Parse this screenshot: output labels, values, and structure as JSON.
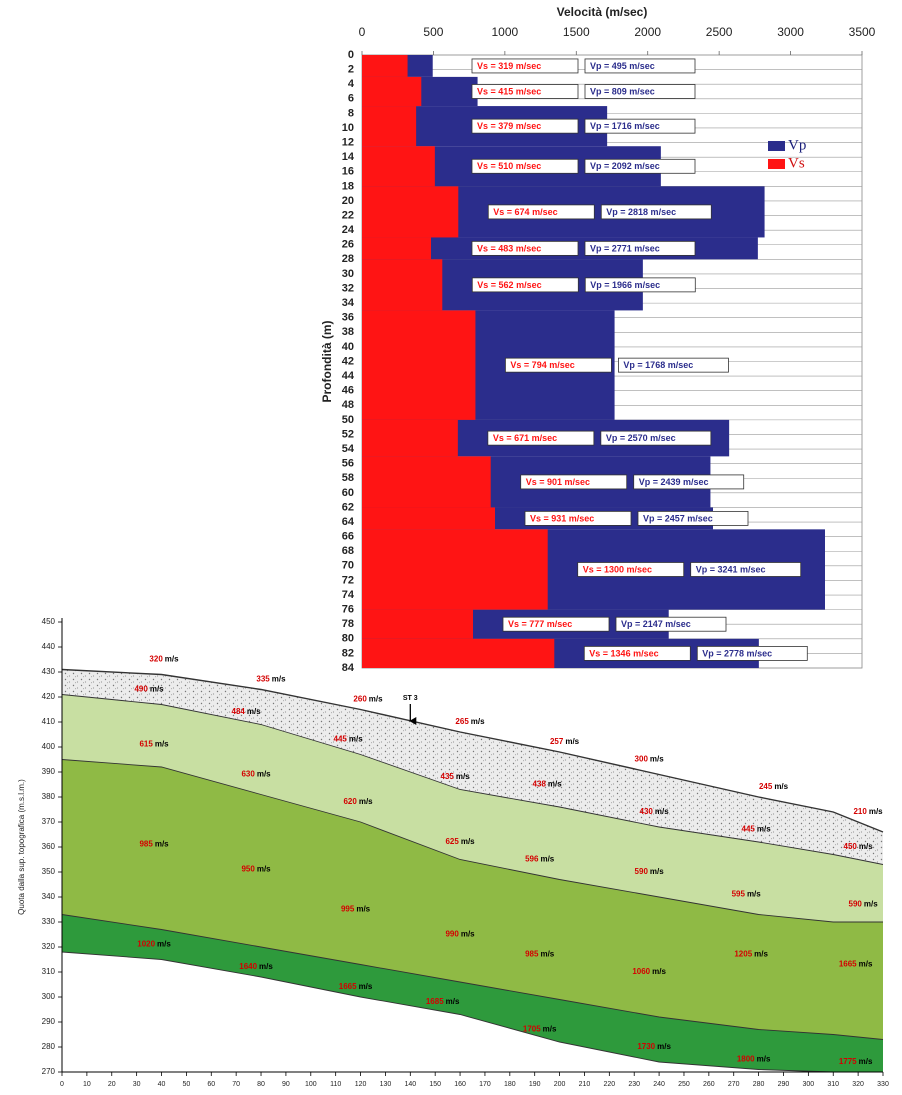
{
  "chart_data": [
    {
      "type": "step",
      "title": "Velocità (m/sec)",
      "y_label": "Profondità (m)",
      "depths": [
        0,
        3,
        7,
        12.5,
        18,
        25,
        28,
        35,
        50,
        55,
        62,
        65,
        76,
        80,
        84
      ],
      "series": [
        {
          "name": "Vp",
          "color": "#2b2d8c",
          "values": [
            495,
            809,
            1716,
            2092,
            2818,
            2771,
            1966,
            1768,
            2570,
            2439,
            2457,
            3241,
            2147,
            2778
          ],
          "value_labels": [
            "Vp = 495 m/sec",
            "Vp = 809 m/sec",
            "Vp = 1716 m/sec",
            "Vp = 2092 m/sec",
            "Vp = 2818 m/sec",
            "Vp = 2771 m/sec",
            "Vp = 1966 m/sec",
            "Vp = 1768 m/sec",
            "Vp = 2570 m/sec",
            "Vp = 2439 m/sec",
            "Vp = 2457 m/sec",
            "Vp = 3241 m/sec",
            "Vp = 2147 m/sec",
            "Vp = 2778 m/sec"
          ]
        },
        {
          "name": "Vs",
          "color": "#ff1414",
          "values": [
            319,
            415,
            379,
            510,
            674,
            483,
            562,
            794,
            671,
            901,
            931,
            1300,
            777,
            1346
          ],
          "value_labels": [
            "Vs = 319 m/sec",
            "Vs = 415 m/sec",
            "Vs = 379 m/sec",
            "Vs = 510 m/sec",
            "Vs = 674 m/sec",
            "Vs = 483 m/sec",
            "Vs = 562 m/sec",
            "Vs = 794 m/sec",
            "Vs = 671 m/sec",
            "Vs = 901 m/sec",
            "Vs = 931 m/sec",
            "Vs = 1300 m/sec",
            "Vs = 777 m/sec",
            "Vs = 1346 m/sec"
          ]
        }
      ],
      "xlim": [
        0,
        3500
      ],
      "xticks": [
        0,
        500,
        1000,
        1500,
        2000,
        2500,
        3000,
        3500
      ],
      "ylim": [
        0,
        84
      ],
      "yticks": [
        0,
        2,
        4,
        6,
        8,
        10,
        12,
        14,
        16,
        18,
        20,
        22,
        24,
        26,
        28,
        30,
        32,
        34,
        36,
        38,
        40,
        42,
        44,
        46,
        48,
        50,
        52,
        54,
        56,
        58,
        60,
        62,
        64,
        66,
        68,
        70,
        72,
        74,
        76,
        78,
        80,
        82,
        84
      ],
      "y_inverted": true,
      "grid": true,
      "legend": "upper right"
    },
    {
      "type": "section",
      "y_label": "Quota dalla sup. topografica (m.s.l.m.)",
      "x": [
        0,
        40,
        80,
        120,
        160,
        200,
        240,
        280,
        310,
        330
      ],
      "boundaries": [
        [
          431,
          429,
          423,
          415,
          406,
          398,
          389,
          380,
          374,
          366
        ],
        [
          421,
          417,
          409,
          397,
          383,
          376,
          368,
          362,
          357,
          353
        ],
        [
          395,
          392,
          381,
          370,
          355,
          347,
          340,
          333,
          330,
          330
        ],
        [
          333,
          327,
          320,
          313,
          306,
          299,
          292,
          287,
          285,
          283
        ],
        [
          318,
          315,
          308,
          300,
          293,
          282,
          274,
          271,
          270,
          270
        ]
      ],
      "colors": [
        "speckled",
        "#c8dfa2",
        "#8fba45",
        "#2e9a3c"
      ],
      "xlim": [
        0,
        330
      ],
      "xticks": [
        0,
        10,
        20,
        30,
        40,
        50,
        60,
        70,
        80,
        90,
        100,
        110,
        120,
        130,
        140,
        150,
        160,
        170,
        180,
        190,
        200,
        210,
        220,
        230,
        240,
        250,
        260,
        270,
        280,
        290,
        300,
        310,
        320,
        330
      ],
      "ylim": [
        270,
        450
      ],
      "yticks": [
        270,
        280,
        290,
        300,
        310,
        320,
        330,
        340,
        350,
        360,
        370,
        380,
        390,
        400,
        410,
        420,
        430,
        440,
        450
      ],
      "unit": "m/s",
      "labels": [
        {
          "x": 41,
          "y": 435,
          "value": 320
        },
        {
          "x": 84,
          "y": 427,
          "value": 335
        },
        {
          "x": 123,
          "y": 419,
          "value": 260
        },
        {
          "x": 164,
          "y": 410,
          "value": 265
        },
        {
          "x": 202,
          "y": 402,
          "value": 257
        },
        {
          "x": 236,
          "y": 395,
          "value": 300
        },
        {
          "x": 286,
          "y": 384,
          "value": 245
        },
        {
          "x": 324,
          "y": 374,
          "value": 210
        },
        {
          "x": 35,
          "y": 423,
          "value": 490
        },
        {
          "x": 74,
          "y": 414,
          "value": 484
        },
        {
          "x": 115,
          "y": 403,
          "value": 445
        },
        {
          "x": 158,
          "y": 388,
          "value": 435
        },
        {
          "x": 195,
          "y": 385,
          "value": 438
        },
        {
          "x": 238,
          "y": 374,
          "value": 430
        },
        {
          "x": 279,
          "y": 367,
          "value": 445
        },
        {
          "x": 320,
          "y": 360,
          "value": 450
        },
        {
          "x": 37,
          "y": 401,
          "value": 615
        },
        {
          "x": 78,
          "y": 389,
          "value": 630
        },
        {
          "x": 119,
          "y": 378,
          "value": 620
        },
        {
          "x": 160,
          "y": 362,
          "value": 625
        },
        {
          "x": 192,
          "y": 355,
          "value": 596
        },
        {
          "x": 236,
          "y": 350,
          "value": 590
        },
        {
          "x": 275,
          "y": 341,
          "value": 595
        },
        {
          "x": 322,
          "y": 337,
          "value": 590
        },
        {
          "x": 37,
          "y": 361,
          "value": 985
        },
        {
          "x": 78,
          "y": 351,
          "value": 950
        },
        {
          "x": 118,
          "y": 335,
          "value": 995
        },
        {
          "x": 160,
          "y": 325,
          "value": 990
        },
        {
          "x": 192,
          "y": 317,
          "value": 985
        },
        {
          "x": 236,
          "y": 310,
          "value": 1060
        },
        {
          "x": 277,
          "y": 317,
          "value": 1205
        },
        {
          "x": 319,
          "y": 313,
          "value": 1665
        },
        {
          "x": 37,
          "y": 321,
          "value": 1020
        },
        {
          "x": 78,
          "y": 312,
          "value": 1640
        },
        {
          "x": 118,
          "y": 304,
          "value": 1665
        },
        {
          "x": 153,
          "y": 298,
          "value": 1685
        },
        {
          "x": 192,
          "y": 287,
          "value": 1705
        },
        {
          "x": 238,
          "y": 280,
          "value": 1730
        },
        {
          "x": 278,
          "y": 275,
          "value": 1800
        },
        {
          "x": 319,
          "y": 274,
          "value": 1775
        }
      ],
      "markers": [
        {
          "x": 140,
          "label": "ST 3"
        }
      ]
    }
  ]
}
